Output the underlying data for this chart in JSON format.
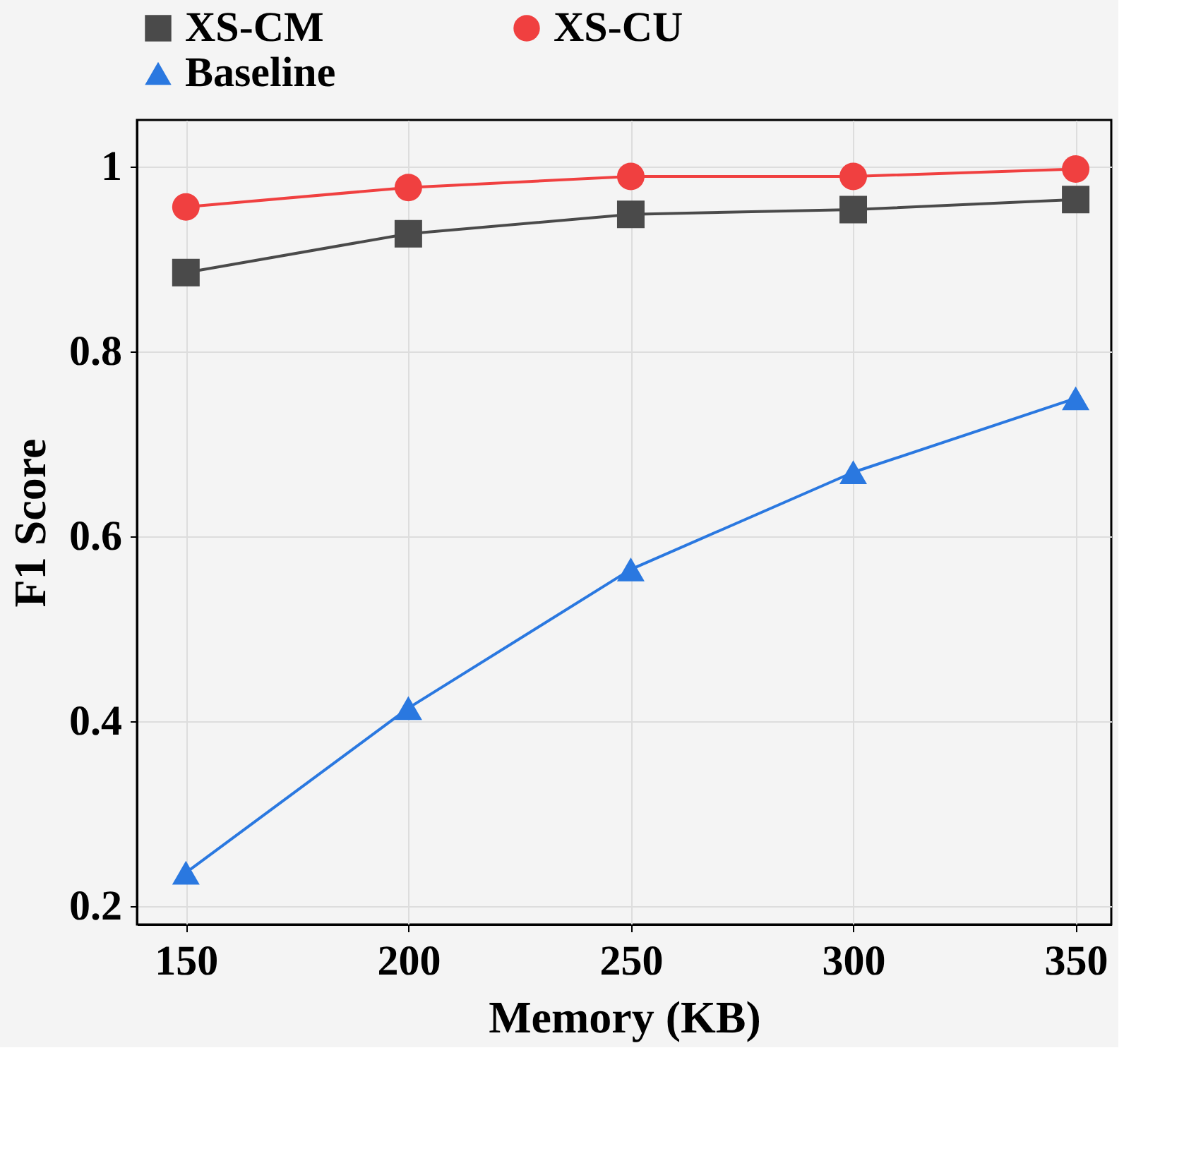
{
  "chart_data": {
    "type": "line",
    "xlabel": "Memory (KB)",
    "ylabel": "F1 Score",
    "x": [
      150,
      200,
      250,
      300,
      350
    ],
    "series": [
      {
        "name": "XS-CM",
        "color": "#4a4a4a",
        "marker": "square",
        "values": [
          0.885,
          0.927,
          0.948,
          0.953,
          0.964
        ]
      },
      {
        "name": "XS-CU",
        "color": "#f04040",
        "marker": "circle",
        "values": [
          0.956,
          0.977,
          0.989,
          0.989,
          0.997
        ]
      },
      {
        "name": "Baseline",
        "color": "#2a78e0",
        "marker": "triangle",
        "values": [
          0.236,
          0.414,
          0.564,
          0.669,
          0.749
        ]
      }
    ],
    "xlim": [
      139,
      358
    ],
    "ylim": [
      0.18,
      1.05
    ],
    "xticks": [
      150,
      200,
      250,
      300,
      350
    ],
    "yticks": [
      0.2,
      0.4,
      0.6,
      0.8,
      {
        "value": 1,
        "label": "1"
      }
    ],
    "grid": true,
    "legend": "top",
    "line_style": "solid"
  }
}
